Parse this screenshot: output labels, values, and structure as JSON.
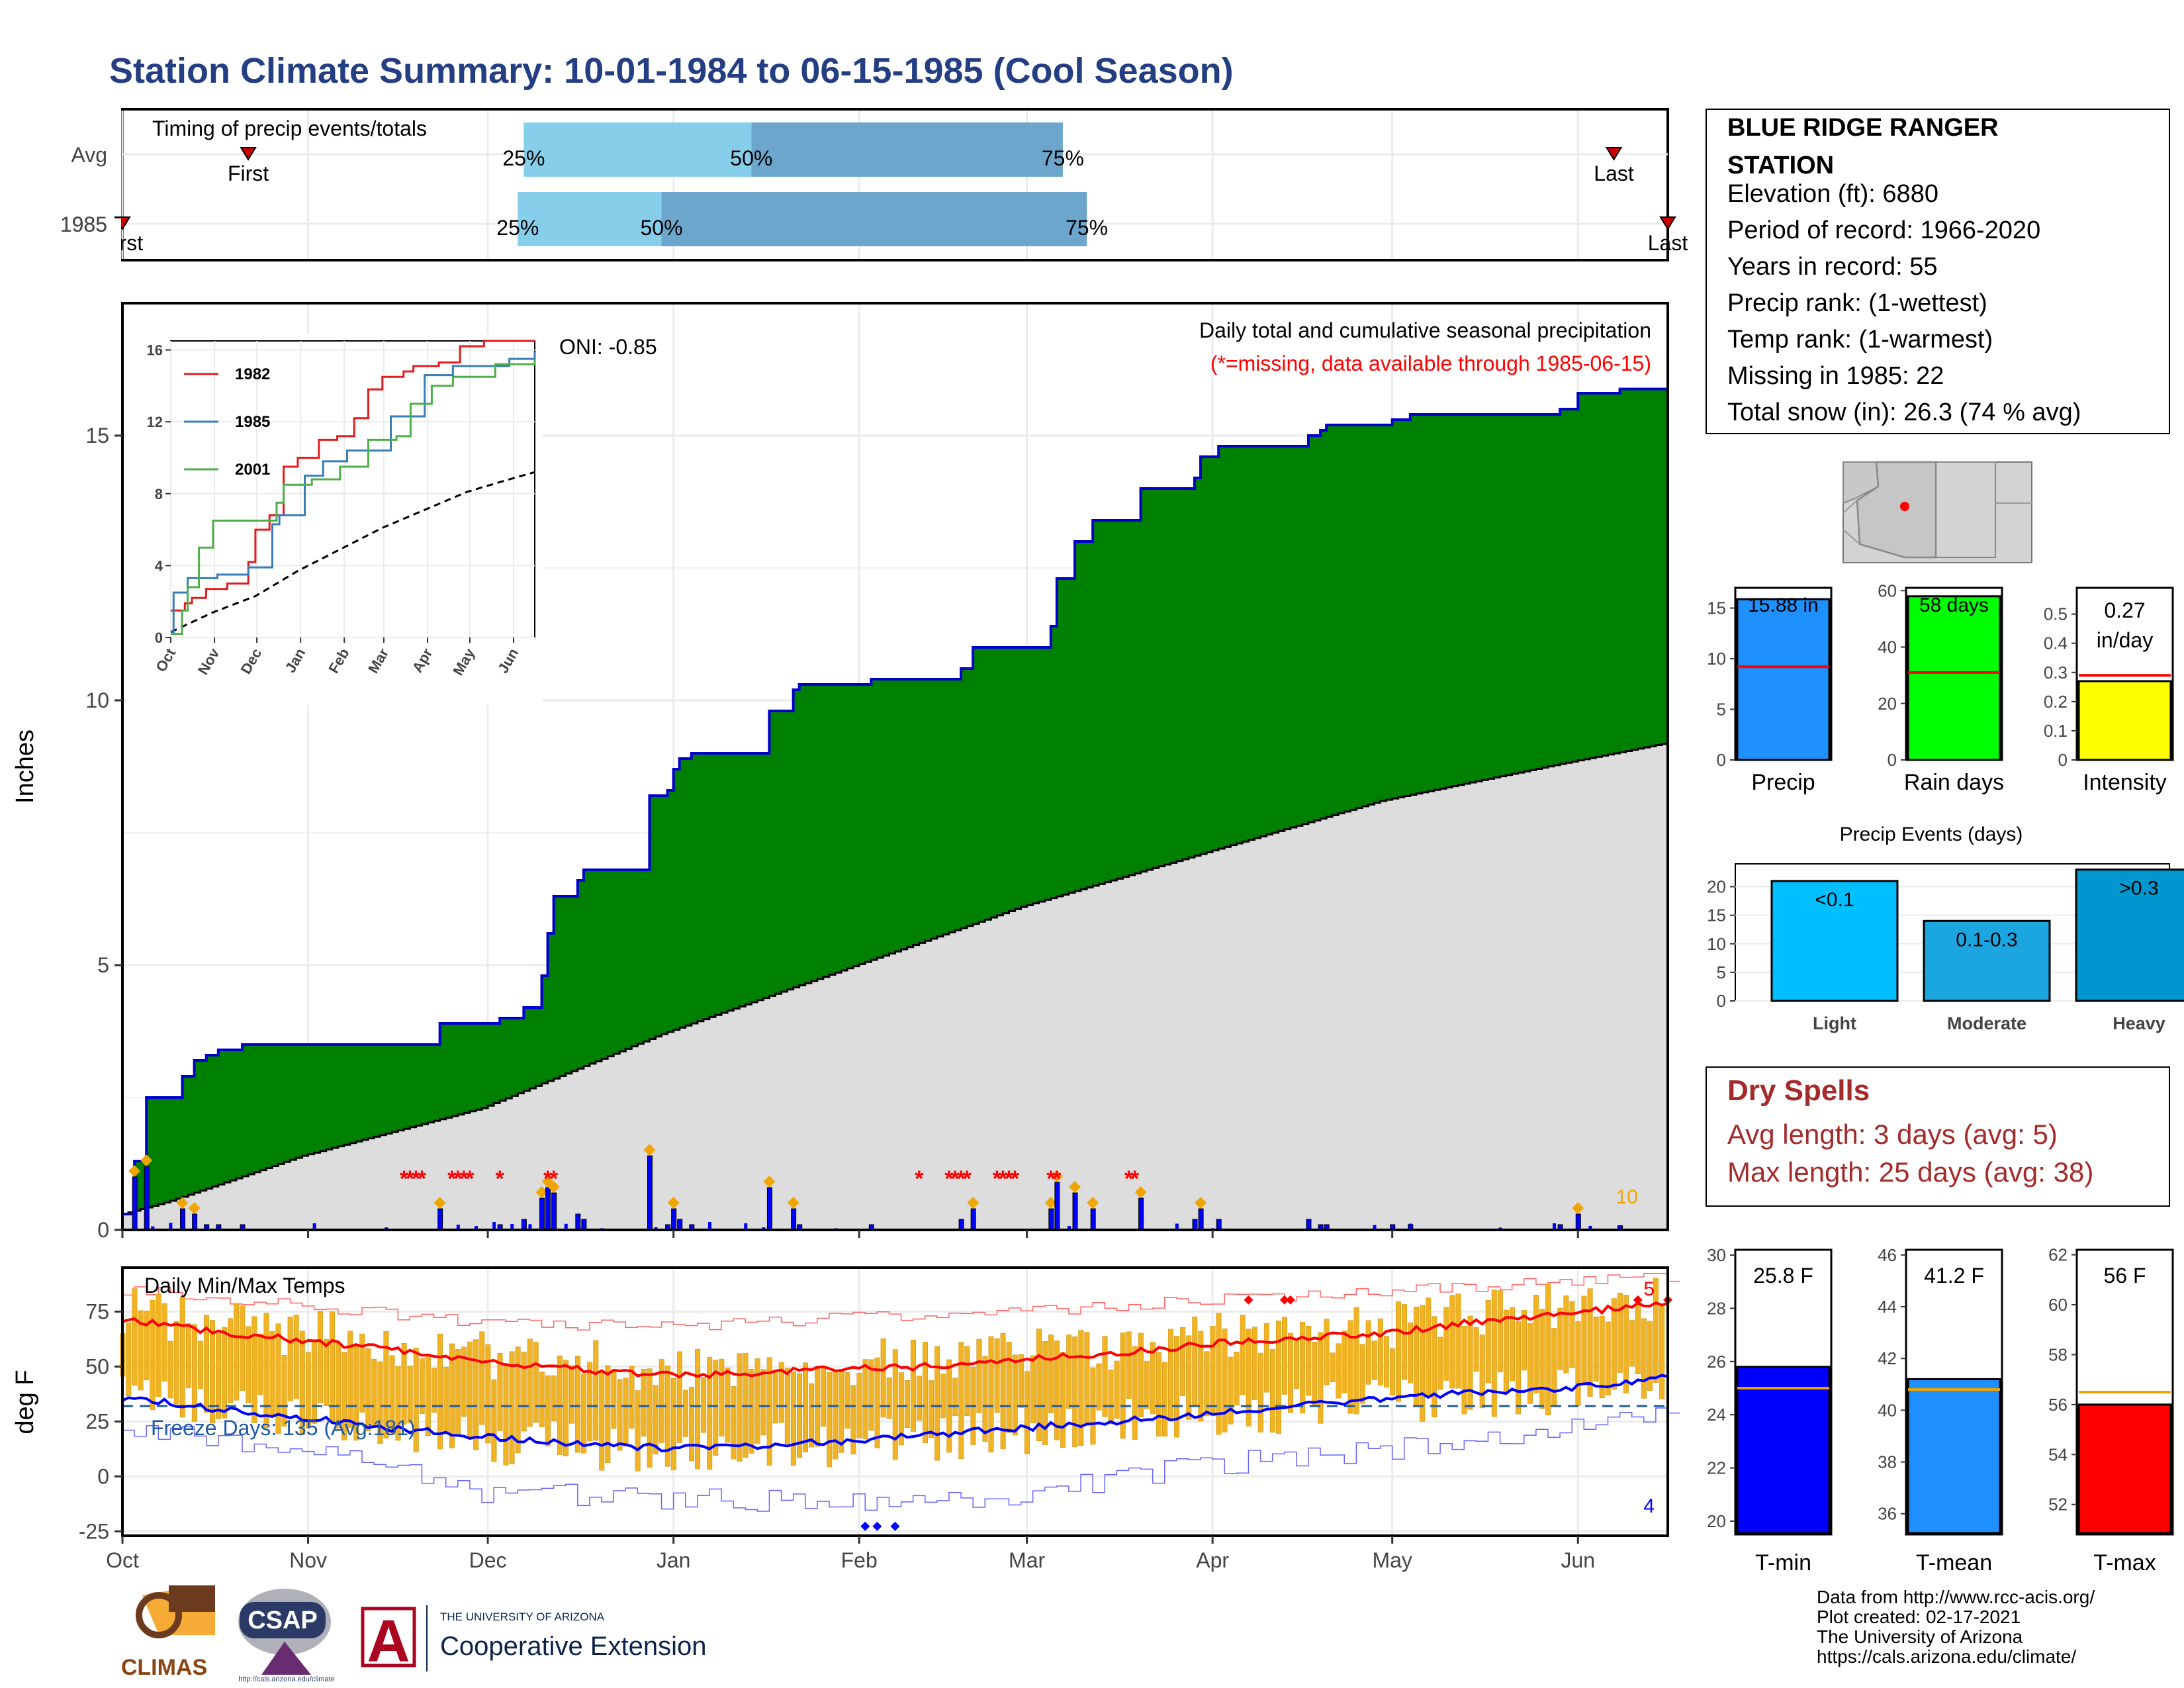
{
  "title": "Station Climate Summary: 10-01-1984 to 06-15-1985 (Cool Season)",
  "station": {
    "name": "BLUE RIDGE RANGER STATION",
    "lines": [
      "Elevation (ft): 6880",
      "Period of record: 1966-2020",
      "Years in record: 55",
      "Precip rank:  (1-wettest)",
      "Temp rank:  (1-warmest)",
      "Missing in 1985: 22",
      "Total snow (in): 26.3 (74 % avg)"
    ]
  },
  "colors": {
    "title": "#243E83",
    "precip_fill": "#008000",
    "precip_line": "#0000CD",
    "avg_fill": "#DDDDDD",
    "quartile_light": "#87CEEB",
    "quartile_dark": "#6CA6CD",
    "dry_spells": "#A52A2A",
    "tmax": "#FF0000",
    "tmin": "#0000FF",
    "temp_bars": "#F0B323"
  },
  "months": [
    "Oct",
    "Nov",
    "Dec",
    "Jan",
    "Feb",
    "Mar",
    "Apr",
    "May",
    "Jun"
  ],
  "timing": {
    "label": "Timing of precip events/totals",
    "rows": [
      "Avg",
      "1985"
    ],
    "avg": {
      "first_label": "First",
      "first_day": 21,
      "last_label": "Last",
      "last_day": 249,
      "q25": "25%",
      "q25_day": 67,
      "q50": "50%",
      "q50_day": 105,
      "q75": "75%",
      "q75_day": 157
    },
    "y1985": {
      "first_label": "First",
      "first_day": 0,
      "last_label": "Last",
      "last_day": 258,
      "q25": "25%",
      "q25_day": 66,
      "q50": "50%",
      "q50_day": 90,
      "q75": "75%",
      "q75_day": 161
    }
  },
  "precip_panel": {
    "ylabel": "Inches",
    "header": "Daily total and cumulative seasonal precipitation",
    "missing_note": "(*=missing, data available through 1985-06-15)",
    "oni": "ONI: -0.85",
    "corner_value": "10",
    "ylim": [
      0,
      17.5
    ],
    "yticks": [
      0,
      5,
      10,
      15
    ]
  },
  "chart_data": [
    {
      "type": "area",
      "title": "Daily total and cumulative seasonal precipitation",
      "ylabel": "Inches",
      "x_unit": "day of season (0 = Oct 1)",
      "series": [
        {
          "name": "1985",
          "x": [
            0,
            2,
            4,
            8,
            10,
            12,
            14,
            16,
            20,
            28,
            33,
            48,
            53,
            55,
            63,
            67,
            70,
            71,
            72,
            76,
            77,
            87,
            88,
            89,
            91,
            92,
            93,
            95,
            107,
            108,
            112,
            113,
            117,
            125,
            140,
            142,
            151,
            155,
            156,
            159,
            162,
            165,
            170,
            175,
            179,
            180,
            183,
            185,
            198,
            200,
            201,
            212,
            215,
            240,
            243,
            250,
            258
          ],
          "y": [
            0.3,
            1.3,
            2.5,
            2.5,
            2.9,
            3.2,
            3.3,
            3.4,
            3.5,
            3.5,
            3.5,
            3.5,
            3.9,
            3.9,
            4.0,
            4.2,
            4.8,
            5.6,
            6.3,
            6.6,
            6.8,
            6.8,
            8.2,
            8.2,
            8.3,
            8.7,
            8.9,
            9.0,
            9.0,
            9.8,
            10.2,
            10.3,
            10.3,
            10.4,
            10.6,
            11.0,
            11.0,
            11.4,
            12.3,
            13.0,
            13.4,
            13.4,
            14.0,
            14.0,
            14.2,
            14.6,
            14.8,
            14.8,
            15.0,
            15.1,
            15.2,
            15.3,
            15.4,
            15.5,
            15.8,
            15.88,
            15.88
          ]
        }
      ],
      "average": {
        "x": [
          0,
          8,
          30,
          60,
          90,
          120,
          150,
          180,
          210,
          240,
          258
        ],
        "y": [
          0.3,
          0.55,
          1.4,
          2.3,
          3.7,
          4.9,
          6.1,
          7.1,
          8.1,
          8.8,
          9.2
        ]
      }
    },
    {
      "type": "line",
      "title": "Inset cumulative precip comparison",
      "categories": [
        "Oct",
        "Nov",
        "Dec",
        "Jan",
        "Feb",
        "Mar",
        "Apr",
        "May",
        "Jun"
      ],
      "ylim": [
        0,
        16.5
      ],
      "yticks": [
        0,
        4,
        8,
        12,
        16
      ],
      "series": [
        {
          "name": "1982",
          "color": "#E41A1C",
          "x": [
            0,
            10,
            15,
            25,
            40,
            55,
            60,
            70,
            80,
            90,
            105,
            118,
            130,
            140,
            150,
            165,
            172,
            190,
            205,
            222,
            258
          ],
          "y": [
            1.5,
            1.9,
            2.2,
            2.7,
            3.0,
            4.2,
            6.0,
            6.8,
            9.5,
            10.0,
            11.0,
            11.2,
            12.2,
            13.8,
            14.5,
            14.8,
            15.1,
            15.3,
            16.2,
            16.5,
            16.5
          ]
        },
        {
          "name": "1985",
          "color": "#377EB8",
          "x": [
            0,
            2,
            12,
            33,
            55,
            72,
            77,
            95,
            108,
            125,
            156,
            180,
            200,
            240,
            258
          ],
          "y": [
            0.3,
            2.5,
            3.3,
            3.5,
            3.9,
            6.3,
            6.8,
            9.0,
            9.8,
            10.4,
            12.3,
            14.6,
            15.1,
            15.5,
            15.88
          ]
        },
        {
          "name": "2001",
          "color": "#4DAF4A",
          "x": [
            0,
            8,
            12,
            20,
            30,
            55,
            75,
            80,
            100,
            120,
            140,
            160,
            170,
            185,
            200,
            230,
            258
          ],
          "y": [
            0.2,
            1.5,
            2.8,
            5.0,
            6.5,
            6.5,
            7.5,
            8.5,
            8.8,
            9.5,
            11.0,
            11.2,
            13.0,
            14.0,
            14.5,
            15.2,
            15.5
          ]
        }
      ],
      "average": {
        "x": [
          0,
          30,
          60,
          90,
          120,
          150,
          180,
          210,
          240,
          258
        ],
        "y": [
          0.3,
          1.4,
          2.3,
          3.7,
          4.9,
          6.1,
          7.1,
          8.1,
          8.8,
          9.2
        ]
      }
    },
    {
      "type": "bar",
      "title": "",
      "ylabel": "deg F",
      "ylim": [
        -27,
        95
      ],
      "yticks": [
        -25,
        0,
        25,
        50,
        75
      ],
      "freeze_label": "Freeze Days: 135 (Avg:181)",
      "panel_label": "Daily Min/Max Temps",
      "corner_top": "5",
      "corner_bottom": "4",
      "freeze_line": 32,
      "avg_max": {
        "x": [
          0,
          15,
          30,
          45,
          60,
          75,
          90,
          105,
          120,
          135,
          150,
          165,
          180,
          195,
          210,
          225,
          240,
          255,
          258
        ],
        "y": [
          72,
          66,
          62,
          58,
          52,
          49,
          46,
          47,
          49,
          50,
          53,
          56,
          60,
          63,
          65,
          70,
          74,
          78,
          79
        ]
      },
      "avg_min": {
        "x": [
          0,
          15,
          30,
          45,
          60,
          75,
          90,
          105,
          120,
          135,
          150,
          165,
          180,
          195,
          210,
          225,
          240,
          255,
          258
        ],
        "y": [
          36,
          31,
          27,
          22,
          18,
          15,
          13,
          14,
          16,
          19,
          22,
          25,
          28,
          32,
          35,
          38,
          40,
          44,
          45
        ]
      },
      "record_max": {
        "x": [
          0,
          30,
          60,
          90,
          120,
          150,
          180,
          210,
          240,
          258
        ],
        "y": [
          85,
          78,
          70,
          68,
          72,
          75,
          80,
          84,
          89,
          91
        ]
      },
      "record_min": {
        "x": [
          0,
          30,
          60,
          90,
          120,
          150,
          180,
          210,
          240,
          258
        ],
        "y": [
          22,
          12,
          -7,
          -10,
          -12,
          -8,
          5,
          12,
          22,
          28
        ]
      }
    },
    {
      "type": "bar",
      "title": "",
      "categories": [
        "Precip",
        "Rain days",
        "Intensity"
      ],
      "values": [
        15.88,
        58,
        0.27
      ],
      "labels": [
        "15.88 in",
        "58 days",
        "0.27 in/day"
      ],
      "averages": [
        9.2,
        31,
        0.29
      ],
      "ylims": [
        [
          0,
          17
        ],
        [
          0,
          61
        ],
        [
          0,
          0.59
        ]
      ],
      "yticks": [
        [
          0,
          5,
          10,
          15
        ],
        [
          0,
          20,
          40,
          60
        ],
        [
          0.0,
          0.1,
          0.2,
          0.3,
          0.4,
          0.5
        ]
      ]
    },
    {
      "type": "bar",
      "title": "Precip Events (days)",
      "categories": [
        "Light",
        "Moderate",
        "Heavy"
      ],
      "values": [
        21,
        14,
        23
      ],
      "labels": [
        "<0.1",
        "0.1-0.3",
        ">0.3"
      ],
      "ylim": [
        0,
        24
      ],
      "yticks": [
        0,
        5,
        10,
        15,
        20
      ]
    },
    {
      "type": "bar",
      "title": "",
      "categories": [
        "T-min",
        "T-mean",
        "T-max"
      ],
      "values": [
        25.8,
        41.2,
        56
      ],
      "labels": [
        "25.8 F",
        "41.2 F",
        "56 F"
      ],
      "averages": [
        25.0,
        40.8,
        56.5
      ],
      "ylims": [
        [
          19.5,
          30.2
        ],
        [
          35.2,
          46.2
        ],
        [
          50.8,
          62.2
        ]
      ],
      "yticks": [
        [
          20,
          22,
          24,
          26,
          28,
          30
        ],
        [
          36,
          38,
          40,
          42,
          44,
          46
        ],
        [
          52,
          54,
          56,
          58,
          60,
          62
        ]
      ]
    }
  ],
  "dry_spells": {
    "title": "Dry Spells",
    "avg_length": "Avg length: 3 days (avg: 5)",
    "max_length": "Max length: 25 days (avg: 38)"
  },
  "footer": {
    "lines": [
      "Data from http://www.rcc-acis.org/",
      "Plot created: 02-17-2021",
      "The University of Arizona",
      "https://cals.arizona.edu/climate/"
    ],
    "logo_climas": "CLIMAS",
    "logo_csap": "CSAP",
    "logo_csap_url": "http://cals.arizona.edu/climate",
    "logo_ua_small": "THE UNIVERSITY OF ARIZONA",
    "logo_ua_big": "Cooperative Extension"
  }
}
